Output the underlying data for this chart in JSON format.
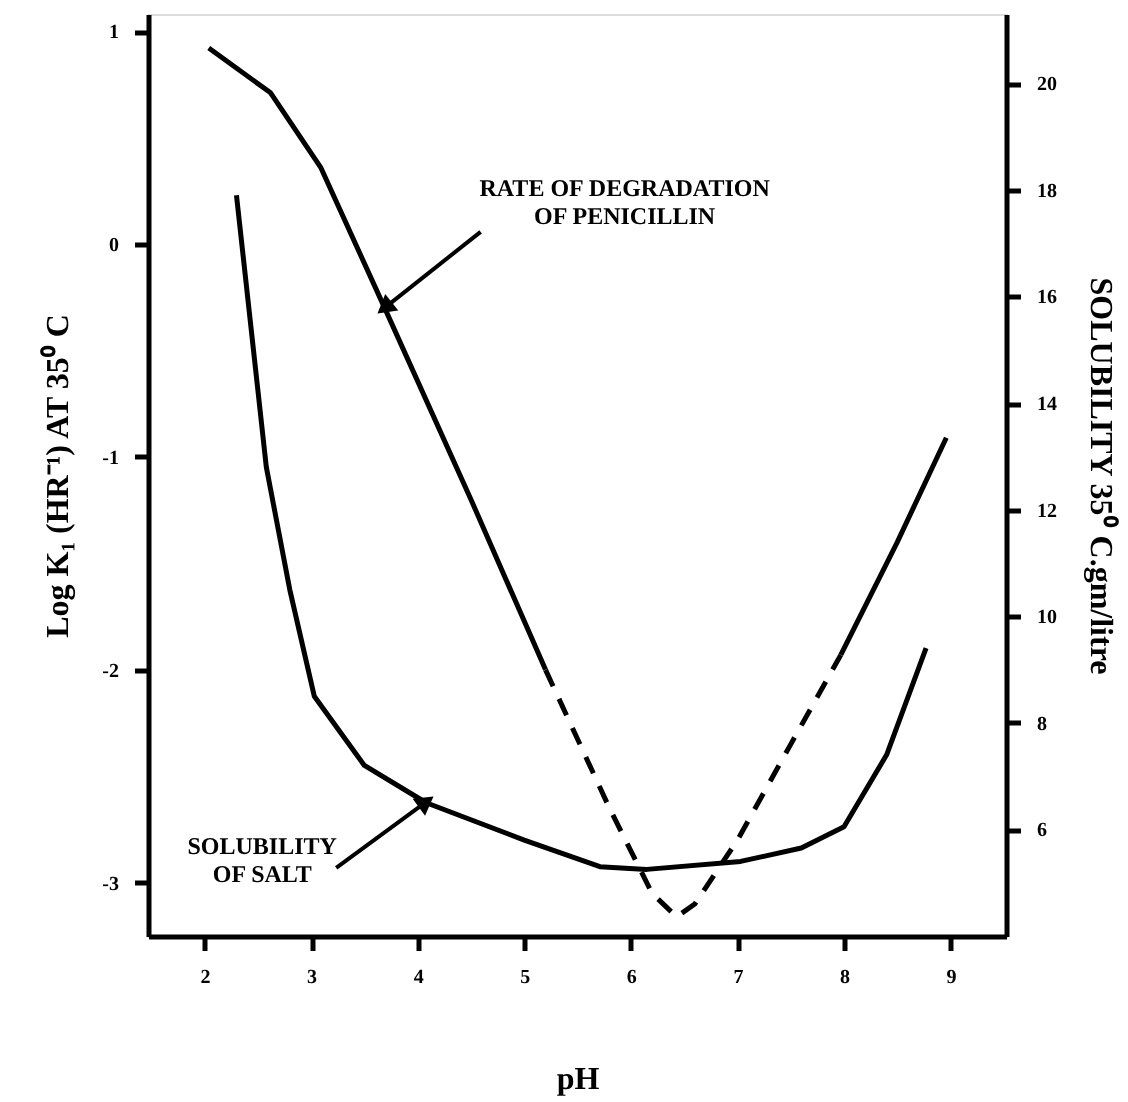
{
  "chart_data": {
    "type": "line",
    "xlabel": "pH",
    "ylabel": "Log K₁ (HR⁻¹) AT 35⁰ C",
    "y2label": "SOLUBILITY 35⁰ C.gm/litre",
    "xlim": [
      1.47,
      9.52
    ],
    "xticks": [
      2,
      3,
      4,
      5,
      6,
      7,
      8,
      9
    ],
    "ylim": [
      -3.25,
      1.08
    ],
    "yticks": [
      -3,
      -2,
      -1,
      0,
      1
    ],
    "y2lim": [
      4,
      21.3
    ],
    "y2ticks": [
      6,
      8,
      10,
      12,
      14,
      16,
      18,
      20
    ],
    "grid": false,
    "marker": "none",
    "series": [
      {
        "color": "#000000",
        "line_style": "solid",
        "x": [
          2.04,
          2.62,
          3.09,
          3.69,
          4.5,
          5.2
        ],
        "values": [
          0.92,
          0.71,
          0.36,
          -0.3,
          -1.2,
          -2.0
        ]
      },
      {
        "color": "#000000",
        "line_style": "dashed",
        "x": [
          5.2,
          5.8,
          6.2,
          6.43,
          6.6,
          7.0,
          7.5,
          7.97
        ],
        "values": [
          -2.0,
          -2.65,
          -3.05,
          -3.16,
          -3.1,
          -2.8,
          -2.35,
          -1.93
        ]
      },
      {
        "color": "#000000",
        "line_style": "solid",
        "x": [
          7.97,
          8.5,
          8.96
        ],
        "values": [
          -1.93,
          -1.4,
          -0.91
        ]
      },
      {
        "color": "#000000",
        "line_style": "solid",
        "axis": "y2",
        "x": [
          2.3,
          2.58,
          2.8,
          3.03,
          3.5,
          4.08,
          5.0,
          5.71,
          6.15,
          7.03,
          7.6,
          8.0,
          8.4,
          8.77
        ],
        "values": [
          17.9,
          12.8,
          10.5,
          8.5,
          7.2,
          6.5,
          5.8,
          5.3,
          5.25,
          5.4,
          5.65,
          6.05,
          7.4,
          9.4
        ]
      }
    ],
    "annotations": [
      {
        "text": "RATE OF DEGRADATION\nOF PENICILLIN",
        "x": 3.69,
        "y": -0.3
      },
      {
        "text": "SOLUBILITY\nOF SALT",
        "x": 4.08,
        "y": -2.62
      }
    ]
  }
}
